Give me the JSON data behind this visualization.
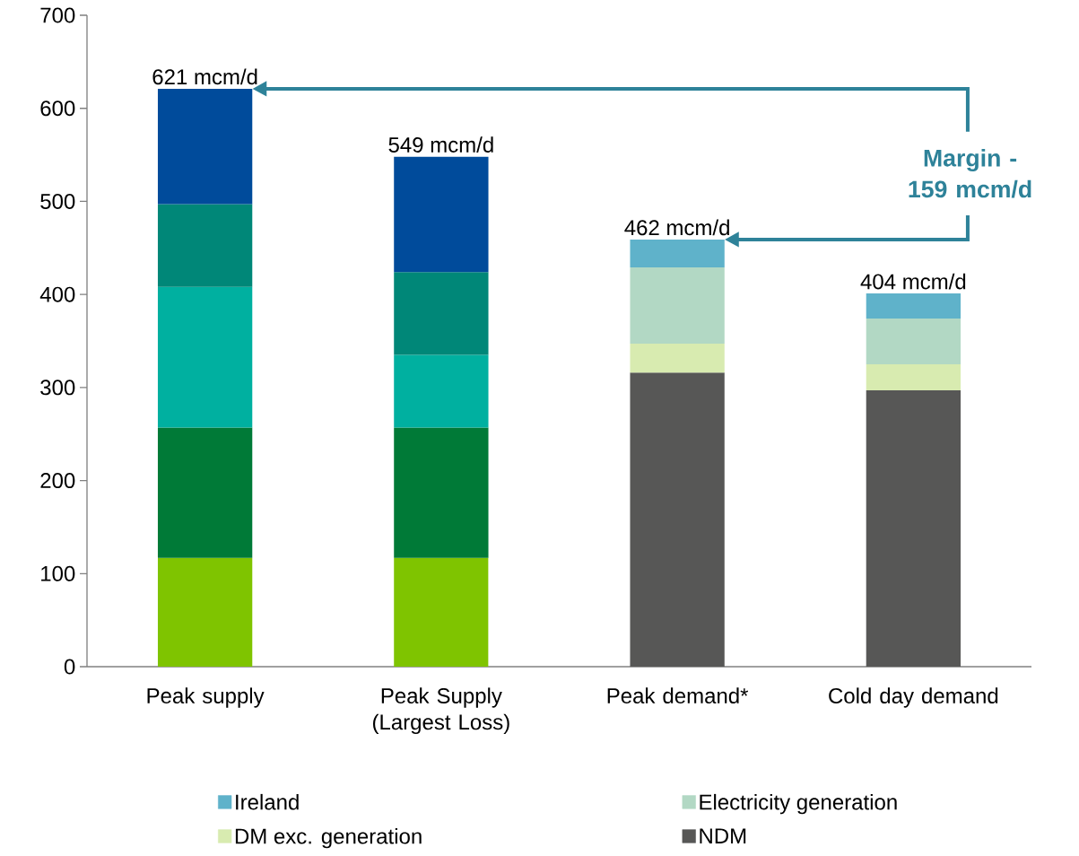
{
  "chart_data": {
    "type": "bar",
    "stacked": true,
    "categories": [
      "Peak supply",
      "Peak Supply (Largest Loss)",
      "Peak demand*",
      "Cold day demand"
    ],
    "series": [
      {
        "color": "#7fc400",
        "values": [
          117,
          117,
          null,
          null
        ]
      },
      {
        "color": "#007a37",
        "values": [
          140,
          140,
          null,
          null
        ]
      },
      {
        "color": "#00b0a0",
        "values": [
          151,
          78,
          null,
          null
        ]
      },
      {
        "color": "#008778",
        "values": [
          89,
          89,
          null,
          null
        ]
      },
      {
        "color": "#004b9b",
        "values": [
          124,
          124,
          null,
          null
        ]
      },
      {
        "name": "NDM",
        "color": "#575756",
        "values": [
          null,
          null,
          316,
          297
        ]
      },
      {
        "name": "DM exc. generation",
        "color": "#d8ebb0",
        "values": [
          null,
          null,
          31,
          28
        ]
      },
      {
        "name": "Electricity generation",
        "color": "#b2d8c4",
        "values": [
          null,
          null,
          82,
          49
        ]
      },
      {
        "name": "Ireland",
        "color": "#5fb2ca",
        "values": [
          null,
          null,
          30,
          27
        ]
      }
    ],
    "ylim": [
      0,
      700
    ],
    "yticks": [
      0,
      100,
      200,
      300,
      400,
      500,
      600,
      700
    ],
    "totals": [
      "621 mcm/d",
      "549 mcm/d",
      "462 mcm/d",
      "404 mcm/d"
    ],
    "annotations": [
      "Margin - 159 mcm/d"
    ],
    "legend": "bottom",
    "grid": false
  }
}
